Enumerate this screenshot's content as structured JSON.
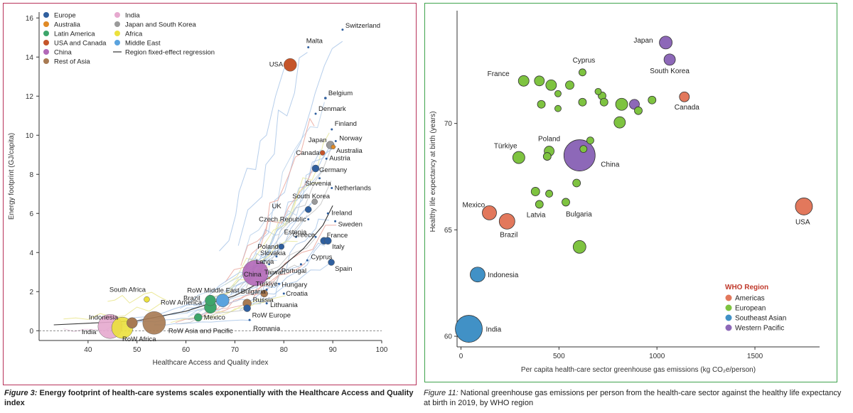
{
  "chart_data": [
    {
      "type": "scatter",
      "title": "",
      "xlabel": "Healthcare Access and Quality index",
      "ylabel": "Energy footprint (GJ/capita)",
      "xlim": [
        30,
        100
      ],
      "ylim": [
        -0.5,
        16.3
      ],
      "xticks": [
        40,
        50,
        60,
        70,
        80,
        90,
        100
      ],
      "yticks": [
        0,
        2,
        4,
        6,
        8,
        10,
        12,
        14,
        16
      ],
      "grid": false,
      "legend_placement": "top-left",
      "legend": [
        {
          "label": "Europe",
          "color": "#2f5f9e",
          "marker": "dot"
        },
        {
          "label": "Australia",
          "color": "#e08a26",
          "marker": "dot"
        },
        {
          "label": "Latin America",
          "color": "#3da56a",
          "marker": "dot"
        },
        {
          "label": "USA and Canada",
          "color": "#c5552a",
          "marker": "dot"
        },
        {
          "label": "China",
          "color": "#b268b8",
          "marker": "dot"
        },
        {
          "label": "Rest of Asia",
          "color": "#a87a52",
          "marker": "dot"
        },
        {
          "label": "India",
          "color": "#e6a9cf",
          "marker": "dot"
        },
        {
          "label": "Japan and South Korea",
          "color": "#9a9a9a",
          "marker": "dot"
        },
        {
          "label": "Africa",
          "color": "#ece13d",
          "marker": "dot"
        },
        {
          "label": "Middle East",
          "color": "#5aa3de",
          "marker": "dot"
        },
        {
          "label": "Region fixed-effect regression",
          "color": "#333333",
          "marker": "line"
        }
      ],
      "points": [
        {
          "label": "Switzerland",
          "x": 92,
          "y": 15.4,
          "size": 1.5,
          "color": "#2f5f9e"
        },
        {
          "label": "Malta",
          "x": 85,
          "y": 14.5,
          "size": 1.5,
          "color": "#2f5f9e"
        },
        {
          "label": "USA",
          "x": 81.3,
          "y": 13.6,
          "size": 9,
          "color": "#c5552a"
        },
        {
          "label": "Belgium",
          "x": 88.5,
          "y": 11.9,
          "size": 1.8,
          "color": "#2f5f9e"
        },
        {
          "label": "Denmark",
          "x": 86.5,
          "y": 11.1,
          "size": 1.5,
          "color": "#2f5f9e"
        },
        {
          "label": "Finland",
          "x": 89.8,
          "y": 10.3,
          "size": 1.5,
          "color": "#2f5f9e"
        },
        {
          "label": "Norway",
          "x": 90.6,
          "y": 9.7,
          "size": 1.5,
          "color": "#2f5f9e"
        },
        {
          "label": "Japan",
          "x": 89.5,
          "y": 9.5,
          "size": 5.5,
          "color": "#9a9a9a"
        },
        {
          "label": "Australia",
          "x": 90.1,
          "y": 9.4,
          "size": 3,
          "color": "#e08a26"
        },
        {
          "label": "Canada",
          "x": 87.9,
          "y": 9.1,
          "size": 3.5,
          "color": "#c5552a"
        },
        {
          "label": "Austria",
          "x": 88.7,
          "y": 8.8,
          "size": 1.5,
          "color": "#2f5f9e"
        },
        {
          "label": "Germany",
          "x": 86.5,
          "y": 8.3,
          "size": 5,
          "color": "#2f5f9e"
        },
        {
          "label": "Slovenia",
          "x": 87.3,
          "y": 7.8,
          "size": 1.5,
          "color": "#2f5f9e"
        },
        {
          "label": "Netherlands",
          "x": 89.8,
          "y": 7.3,
          "size": 1.5,
          "color": "#2f5f9e"
        },
        {
          "label": "South Korea",
          "x": 86.3,
          "y": 6.6,
          "size": 4,
          "color": "#9a9a9a"
        },
        {
          "label": "UK",
          "x": 85,
          "y": 6.2,
          "size": 4.5,
          "color": "#2f5f9e"
        },
        {
          "label": "Ireland",
          "x": 89,
          "y": 6.0,
          "size": 1.5,
          "color": "#2f5f9e"
        },
        {
          "label": "Czech Republic",
          "x": 85,
          "y": 5.7,
          "size": 1.5,
          "color": "#2f5f9e"
        },
        {
          "label": "Sweden",
          "x": 90.5,
          "y": 5.6,
          "size": 1.5,
          "color": "#2f5f9e"
        },
        {
          "label": "Estonia",
          "x": 82.5,
          "y": 4.8,
          "size": 1.5,
          "color": "#2f5f9e"
        },
        {
          "label": "Greece",
          "x": 86.5,
          "y": 4.8,
          "size": 1.5,
          "color": "#2f5f9e"
        },
        {
          "label": "France",
          "x": 88.2,
          "y": 4.6,
          "size": 5,
          "color": "#2f5f9e"
        },
        {
          "label": "Italy",
          "x": 89.0,
          "y": 4.6,
          "size": 5,
          "color": "#2f5f9e"
        },
        {
          "label": "Poland",
          "x": 79.5,
          "y": 4.3,
          "size": 4,
          "color": "#2f5f9e"
        },
        {
          "label": "Slovakia",
          "x": 78.5,
          "y": 3.8,
          "size": 1.5,
          "color": "#2f5f9e"
        },
        {
          "label": "Cyprus",
          "x": 84.8,
          "y": 3.6,
          "size": 1.5,
          "color": "#2f5f9e"
        },
        {
          "label": "Latvia",
          "x": 77,
          "y": 3.4,
          "size": 1.5,
          "color": "#2f5f9e"
        },
        {
          "label": "Portugal",
          "x": 83.5,
          "y": 3.4,
          "size": 1.5,
          "color": "#2f5f9e"
        },
        {
          "label": "Spain",
          "x": 89.7,
          "y": 3.5,
          "size": 4.5,
          "color": "#2f5f9e"
        },
        {
          "label": "China",
          "x": 74.2,
          "y": 2.95,
          "size": 18,
          "color": "#b268b8"
        },
        {
          "label": "Taiwan",
          "x": 77,
          "y": 2.7,
          "size": 1.5,
          "color": "#a87a52"
        },
        {
          "label": "Hungary",
          "x": 79,
          "y": 2.4,
          "size": 1.5,
          "color": "#2f5f9e"
        },
        {
          "label": "Türkiye",
          "x": 76.5,
          "y": 2.1,
          "size": 1.5,
          "color": "#2f5f9e"
        },
        {
          "label": "Croatia",
          "x": 80,
          "y": 1.9,
          "size": 1.5,
          "color": "#2f5f9e"
        },
        {
          "label": "South Africa",
          "x": 52,
          "y": 1.6,
          "size": 4,
          "color": "#ece13d"
        },
        {
          "label": "RoW Middle East",
          "x": 67.5,
          "y": 1.55,
          "size": 9,
          "color": "#5aa3de"
        },
        {
          "label": "Bulgaria",
          "x": 76,
          "y": 1.9,
          "size": 5,
          "color": "#a87a52"
        },
        {
          "label": "Brazil",
          "x": 65,
          "y": 1.55,
          "size": 7.5,
          "color": "#3da56a"
        },
        {
          "label": "RoW America",
          "x": 65,
          "y": 1.2,
          "size": 8.5,
          "color": "#3da56a"
        },
        {
          "label": "Russia",
          "x": 72.5,
          "y": 1.4,
          "size": 6,
          "color": "#a87a52"
        },
        {
          "label": "Lithuania",
          "x": 76.5,
          "y": 1.4,
          "size": 1.5,
          "color": "#2f5f9e"
        },
        {
          "label": "RoW Europe",
          "x": 72.5,
          "y": 1.15,
          "size": 5,
          "color": "#2f5f9e"
        },
        {
          "label": "Indonesia",
          "x": 49,
          "y": 0.4,
          "size": 7.5,
          "color": "#a87a52"
        },
        {
          "label": "Mexico",
          "x": 62.5,
          "y": 0.68,
          "size": 5.5,
          "color": "#3da56a"
        },
        {
          "label": "Romania",
          "x": 73,
          "y": 0.55,
          "size": 1.5,
          "color": "#2f5f9e"
        },
        {
          "label": "RoW Asia and Pacific",
          "x": 53.5,
          "y": 0.4,
          "size": 16,
          "color": "#a87a52"
        },
        {
          "label": "India",
          "x": 44.5,
          "y": 0.22,
          "size": 17,
          "color": "#e6a9cf"
        },
        {
          "label": "RoW Africa",
          "x": 47,
          "y": 0.15,
          "size": 15,
          "color": "#ece13d"
        }
      ],
      "regression": [
        [
          33,
          0.3
        ],
        [
          50,
          0.5
        ],
        [
          60,
          1.0
        ],
        [
          70,
          1.8
        ],
        [
          77,
          2.7
        ],
        [
          84,
          4.2
        ],
        [
          88,
          5.4
        ],
        [
          90,
          6.4
        ]
      ],
      "annotations": [
        {
          "text": "16",
          "note": "y tick"
        }
      ]
    },
    {
      "type": "scatter",
      "title": "",
      "xlabel": "Per capita health-care sector greenhouse gas emissions (kg CO₂e/person)",
      "ylabel": "Healthy life expectancy at birth (years)",
      "xlim": [
        -20,
        1830
      ],
      "ylim": [
        59.5,
        75.3
      ],
      "xticks": [
        0,
        500,
        1000,
        1500
      ],
      "yticks": [
        60,
        65,
        70
      ],
      "grid": false,
      "legend_placement": "bottom-right",
      "legend_title": "WHO Region",
      "legend": [
        {
          "label": "Americas",
          "color": "#e2785c"
        },
        {
          "label": "European",
          "color": "#7ec340"
        },
        {
          "label": "Southeast Asian",
          "color": "#4191c6"
        },
        {
          "label": "Western Pacific",
          "color": "#8d68b8"
        }
      ],
      "points": [
        {
          "label": "Japan",
          "x": 1045,
          "y": 73.8,
          "size": 9,
          "color": "#8d68b8"
        },
        {
          "label": "South Korea",
          "x": 1065,
          "y": 73.0,
          "size": 8,
          "color": "#8d68b8"
        },
        {
          "label": "",
          "x": 620,
          "y": 72.4,
          "size": 5,
          "color": "#7ec340"
        },
        {
          "label": "",
          "x": 320,
          "y": 72.0,
          "size": 7.5,
          "color": "#7ec340"
        },
        {
          "label": "",
          "x": 400,
          "y": 72.0,
          "size": 7,
          "color": "#7ec340"
        },
        {
          "label": "",
          "x": 460,
          "y": 71.8,
          "size": 7.5,
          "color": "#7ec340"
        },
        {
          "label": "",
          "x": 555,
          "y": 71.8,
          "size": 6,
          "color": "#7ec340"
        },
        {
          "label": "",
          "x": 495,
          "y": 71.4,
          "size": 4.5,
          "color": "#7ec340"
        },
        {
          "label": "",
          "x": 700,
          "y": 71.5,
          "size": 4.5,
          "color": "#7ec340"
        },
        {
          "label": "",
          "x": 720,
          "y": 71.3,
          "size": 5.5,
          "color": "#7ec340"
        },
        {
          "label": "",
          "x": 410,
          "y": 70.9,
          "size": 5.5,
          "color": "#7ec340"
        },
        {
          "label": "",
          "x": 495,
          "y": 70.7,
          "size": 4.5,
          "color": "#7ec340"
        },
        {
          "label": "",
          "x": 620,
          "y": 71.0,
          "size": 5.5,
          "color": "#7ec340"
        },
        {
          "label": "",
          "x": 730,
          "y": 71.0,
          "size": 5.5,
          "color": "#7ec340"
        },
        {
          "label": "",
          "x": 820,
          "y": 70.9,
          "size": 8.5,
          "color": "#7ec340"
        },
        {
          "label": "",
          "x": 885,
          "y": 70.9,
          "size": 7,
          "color": "#8d68b8"
        },
        {
          "label": "",
          "x": 905,
          "y": 70.6,
          "size": 5.5,
          "color": "#7ec340"
        },
        {
          "label": "",
          "x": 975,
          "y": 71.1,
          "size": 5.5,
          "color": "#7ec340"
        },
        {
          "label": "Canada",
          "x": 1140,
          "y": 71.25,
          "size": 7,
          "color": "#e2785c"
        },
        {
          "label": "",
          "x": 810,
          "y": 70.05,
          "size": 8,
          "color": "#7ec340"
        },
        {
          "label": "",
          "x": 660,
          "y": 69.2,
          "size": 5,
          "color": "#7ec340"
        },
        {
          "label": "",
          "x": 625,
          "y": 68.8,
          "size": 5,
          "color": "#7ec340"
        },
        {
          "label": "China",
          "x": 605,
          "y": 68.5,
          "size": 22,
          "color": "#8d68b8"
        },
        {
          "label": "Poland",
          "x": 450,
          "y": 68.7,
          "size": 7,
          "color": "#7ec340"
        },
        {
          "label": "",
          "x": 440,
          "y": 68.45,
          "size": 5.5,
          "color": "#7ec340"
        },
        {
          "label": "Türkiye",
          "x": 295,
          "y": 68.4,
          "size": 8.5,
          "color": "#7ec340"
        },
        {
          "label": "",
          "x": 590,
          "y": 67.2,
          "size": 5.5,
          "color": "#7ec340"
        },
        {
          "label": "",
          "x": 380,
          "y": 66.8,
          "size": 6,
          "color": "#7ec340"
        },
        {
          "label": "",
          "x": 450,
          "y": 66.7,
          "size": 5,
          "color": "#7ec340"
        },
        {
          "label": "Latvia",
          "x": 400,
          "y": 66.2,
          "size": 5.5,
          "color": "#7ec340"
        },
        {
          "label": "Bulgaria",
          "x": 535,
          "y": 66.3,
          "size": 5.5,
          "color": "#7ec340"
        },
        {
          "label": "Mexico",
          "x": 145,
          "y": 65.8,
          "size": 10,
          "color": "#e2785c"
        },
        {
          "label": "Brazil",
          "x": 235,
          "y": 65.4,
          "size": 11,
          "color": "#e2785c"
        },
        {
          "label": "USA",
          "x": 1750,
          "y": 66.1,
          "size": 12,
          "color": "#e2785c"
        },
        {
          "label": "",
          "x": 605,
          "y": 64.2,
          "size": 9,
          "color": "#7ec340"
        },
        {
          "label": "Indonesia",
          "x": 85,
          "y": 62.9,
          "size": 10.5,
          "color": "#4191c6"
        },
        {
          "label": "India",
          "x": 40,
          "y": 60.35,
          "size": 19,
          "color": "#4191c6"
        }
      ]
    }
  ],
  "captions": {
    "left_lead": "Figure 3:",
    "left_text": "Energy footprint of health-care systems scales exponentially with the Healthcare Access and Quality index",
    "right_lead": "Figure 11:",
    "right_text": "National greenhouse gas emissions per person from the health-care sector against the healthy life expectancy at birth in 2019, by WHO region"
  }
}
